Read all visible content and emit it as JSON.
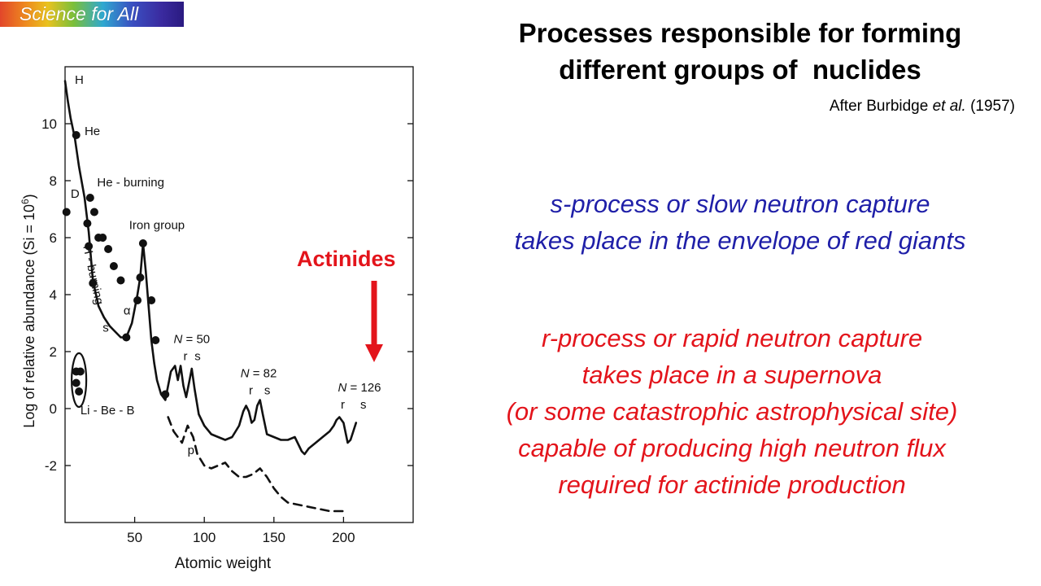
{
  "logo": {
    "text": "Science for All"
  },
  "title": {
    "line1": "Processes responsible for forming",
    "line2": "different groups of  nuclides"
  },
  "citation": {
    "prefix": "After Burbidge ",
    "italic": "et al.",
    "suffix": " (1957)"
  },
  "s_process": {
    "line1": "s-process or slow neutron capture",
    "line2": "takes place in the envelope of red giants"
  },
  "r_process": {
    "line1": "r-process or rapid neutron capture",
    "line2": "takes place in a supernova",
    "line3": "(or some catastrophic astrophysical site)",
    "line4": "capable of producing high neutron flux",
    "line5": "required for actinide production"
  },
  "actinides_label": "Actinides",
  "colors": {
    "red": "#e3141b",
    "blue": "#1f1fa8",
    "ink": "#111111"
  },
  "chart_data": {
    "type": "line",
    "xlabel": "Atomic weight",
    "ylabel_main": "Log of relative abundance (Si = 10",
    "ylabel_sup": "6",
    "ylabel_end": ")",
    "xlim": [
      0,
      250
    ],
    "ylim": [
      -4,
      12
    ],
    "xticks": [
      50,
      100,
      150,
      200
    ],
    "yticks": [
      -2,
      0,
      2,
      4,
      6,
      8,
      10
    ],
    "series": [
      {
        "style": "solid",
        "x": [
          0,
          2,
          4,
          7,
          10,
          14,
          17,
          20,
          24,
          28,
          32,
          36,
          40,
          44,
          48,
          52,
          54,
          56,
          58,
          60,
          62,
          64,
          66,
          69,
          72,
          76,
          79,
          81,
          83,
          85,
          87,
          89,
          91,
          93,
          96,
          100,
          105,
          110,
          115,
          120,
          125,
          128,
          130,
          132,
          134,
          136,
          138,
          140,
          142,
          145,
          150,
          155,
          160,
          165,
          170,
          172,
          175,
          180,
          185,
          190,
          193,
          195,
          197,
          200,
          203,
          205,
          207,
          209
        ],
        "y": [
          11.5,
          10.8,
          10.2,
          9.5,
          8.5,
          7.4,
          6.2,
          4.5,
          3.6,
          3.2,
          2.9,
          2.7,
          2.5,
          2.5,
          3.0,
          4.0,
          4.6,
          5.8,
          4.8,
          3.6,
          2.4,
          1.6,
          1.0,
          0.5,
          0.3,
          1.3,
          1.5,
          1.0,
          1.5,
          0.8,
          0.4,
          0.9,
          1.4,
          0.7,
          -0.2,
          -0.6,
          -0.9,
          -1.0,
          -1.1,
          -1.0,
          -0.6,
          -0.1,
          0.1,
          -0.1,
          -0.5,
          -0.4,
          0.1,
          0.3,
          -0.2,
          -0.9,
          -1.0,
          -1.1,
          -1.1,
          -1.0,
          -1.5,
          -1.6,
          -1.4,
          -1.2,
          -1.0,
          -0.8,
          -0.6,
          -0.4,
          -0.3,
          -0.5,
          -1.2,
          -1.1,
          -0.8,
          -0.5
        ]
      },
      {
        "style": "dashed",
        "x": [
          74,
          78,
          81,
          84,
          88,
          92,
          95,
          100,
          105,
          110,
          115,
          120,
          125,
          130,
          135,
          140,
          145,
          150,
          155,
          160,
          170,
          180,
          190,
          200
        ],
        "y": [
          -0.3,
          -0.8,
          -1.0,
          -1.2,
          -0.6,
          -1.0,
          -1.6,
          -2.0,
          -2.1,
          -2.0,
          -1.9,
          -2.2,
          -2.4,
          -2.4,
          -2.3,
          -2.1,
          -2.4,
          -2.8,
          -3.1,
          -3.3,
          -3.4,
          -3.5,
          -3.6,
          -3.6
        ]
      }
    ],
    "points": [
      {
        "x": 1,
        "y": 6.9
      },
      {
        "x": 8,
        "y": 9.6
      },
      {
        "x": 16,
        "y": 6.5
      },
      {
        "x": 17,
        "y": 5.7
      },
      {
        "x": 18,
        "y": 7.4
      },
      {
        "x": 21,
        "y": 6.9
      },
      {
        "x": 20,
        "y": 4.4
      },
      {
        "x": 24,
        "y": 6.0
      },
      {
        "x": 27,
        "y": 6.0
      },
      {
        "x": 31,
        "y": 5.6
      },
      {
        "x": 35,
        "y": 5.0
      },
      {
        "x": 40,
        "y": 4.5
      },
      {
        "x": 44,
        "y": 2.5
      },
      {
        "x": 52,
        "y": 3.8
      },
      {
        "x": 54,
        "y": 4.6
      },
      {
        "x": 56,
        "y": 5.8
      },
      {
        "x": 62,
        "y": 3.8
      },
      {
        "x": 65,
        "y": 2.4
      },
      {
        "x": 72,
        "y": 0.5
      },
      {
        "x": 8,
        "y": 1.3
      },
      {
        "x": 8,
        "y": 0.9
      },
      {
        "x": 10,
        "y": 0.6
      },
      {
        "x": 11,
        "y": 1.3
      }
    ],
    "annotations": [
      {
        "text": "H",
        "x": 7,
        "y": 11.4
      },
      {
        "text": "He",
        "x": 14,
        "y": 9.6
      },
      {
        "text": "He - burning",
        "x": 23,
        "y": 7.8
      },
      {
        "text": "D",
        "x": 4,
        "y": 7.4
      },
      {
        "text": "Iron group",
        "x": 46,
        "y": 6.3
      },
      {
        "text": "α",
        "x": 42,
        "y": 3.3
      },
      {
        "text": "s",
        "x": 27,
        "y": 2.7
      },
      {
        "text": "N = 50",
        "x": 78,
        "y": 2.3
      },
      {
        "text": "r",
        "x": 85,
        "y": 1.7
      },
      {
        "text": "s",
        "x": 93,
        "y": 1.7
      },
      {
        "text": "N = 82",
        "x": 126,
        "y": 1.1
      },
      {
        "text": "r",
        "x": 132,
        "y": 0.5
      },
      {
        "text": "s",
        "x": 143,
        "y": 0.5
      },
      {
        "text": "N = 126",
        "x": 196,
        "y": 0.6
      },
      {
        "text": "r",
        "x": 198,
        "y": 0.0
      },
      {
        "text": "s",
        "x": 212,
        "y": 0.0
      },
      {
        "text": "Li - Be - B",
        "x": 11,
        "y": -0.2
      },
      {
        "text": "p",
        "x": 88,
        "y": -1.6
      }
    ],
    "rotated_annotation": {
      "text": "H - burning",
      "x": 13,
      "y": 5.7
    },
    "grid": false,
    "legend": "none"
  }
}
